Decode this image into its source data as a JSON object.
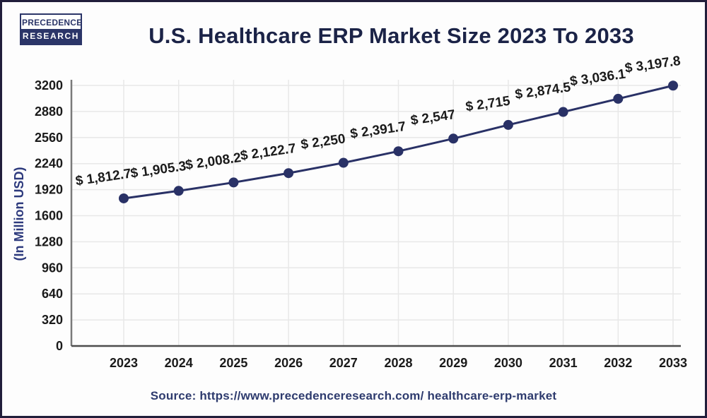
{
  "logo": {
    "line1": "PRECEDENCE",
    "line2": "RESEARCH"
  },
  "footer": {
    "source": "Source: https://www.precedenceresearch.com/ healthcare-erp-market"
  },
  "colors": {
    "line": "#293166",
    "marker": "#293166",
    "title": "#1b2347",
    "point_label": "#1a1a1a",
    "tick_label": "#1a1a1a",
    "ylabel": "#2d3a7d",
    "source": "#2e3b6e",
    "grid": "#e8e8e8",
    "y_axis": "#7a7a7a",
    "x_axis": "#4d4d4d"
  },
  "chart_data": {
    "type": "line",
    "title": "U.S. Healthcare ERP Market Size 2023 To 2033",
    "categories": [
      "2023",
      "2024",
      "2025",
      "2026",
      "2027",
      "2028",
      "2029",
      "2030",
      "2031",
      "2032",
      "2033"
    ],
    "values": [
      1812.7,
      1905.3,
      2008.2,
      2122.7,
      2250,
      2391.7,
      2547,
      2715,
      2874.5,
      3036.1,
      3197.8
    ],
    "point_labels": [
      "$ 1,812.7",
      "$ 1,905.3",
      "$ 2,008.2",
      "$ 2,122.7",
      "$ 2,250",
      "$ 2,391.7",
      "$ 2,547",
      "$ 2,715",
      "$ 2,874.5",
      "$ 3,036.1",
      "$ 3,197.8"
    ],
    "xlabel": "",
    "ylabel": "(In Million USD)",
    "ylim": [
      0,
      3200
    ],
    "ytick_step": 320,
    "yticks": [
      "0",
      "320",
      "640",
      "960",
      "1280",
      "1600",
      "1920",
      "2240",
      "2560",
      "2880",
      "3200"
    ],
    "grid": "on",
    "legend": "none"
  }
}
